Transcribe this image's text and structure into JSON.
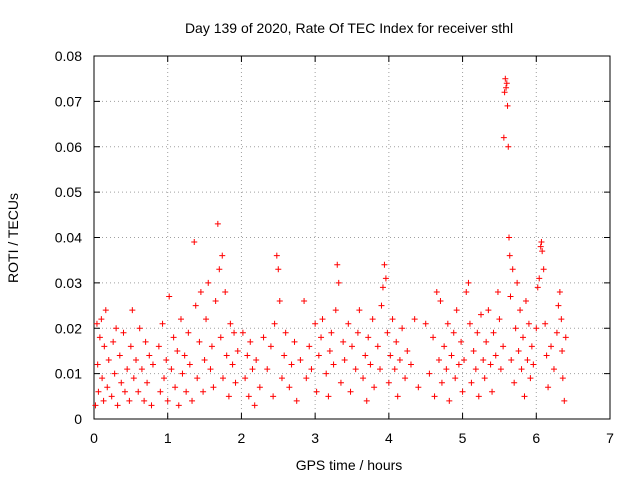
{
  "chart_data": {
    "type": "scatter",
    "title": "Day 139 of 2020, Rate Of TEC Index for receiver sthl",
    "xlabel": "GPS time / hours",
    "ylabel": "ROTI / TECUs",
    "xlim": [
      0,
      7
    ],
    "ylim": [
      0,
      0.08
    ],
    "xticks": [
      0,
      1,
      2,
      3,
      4,
      5,
      6,
      7
    ],
    "xtick_labels": [
      "0",
      "1",
      "2",
      "3",
      "4",
      "5",
      "6",
      "7"
    ],
    "yticks": [
      0,
      0.01,
      0.02,
      0.03,
      0.04,
      0.05,
      0.06,
      0.07,
      0.08
    ],
    "ytick_labels": [
      "0",
      "0.01",
      "0.02",
      "0.03",
      "0.04",
      "0.05",
      "0.06",
      "0.07",
      "0.08"
    ],
    "grid": true,
    "marker": "+",
    "color": "#ff0000",
    "series": [
      {
        "name": "ROTI",
        "points": [
          [
            0.02,
            0.003
          ],
          [
            0.04,
            0.021
          ],
          [
            0.05,
            0.012
          ],
          [
            0.06,
            0.006
          ],
          [
            0.08,
            0.018
          ],
          [
            0.1,
            0.022
          ],
          [
            0.11,
            0.009
          ],
          [
            0.13,
            0.004
          ],
          [
            0.14,
            0.016
          ],
          [
            0.16,
            0.024
          ],
          [
            0.18,
            0.007
          ],
          [
            0.2,
            0.013
          ],
          [
            0.24,
            0.005
          ],
          [
            0.26,
            0.017
          ],
          [
            0.28,
            0.01
          ],
          [
            0.3,
            0.02
          ],
          [
            0.32,
            0.003
          ],
          [
            0.35,
            0.014
          ],
          [
            0.37,
            0.008
          ],
          [
            0.4,
            0.019
          ],
          [
            0.42,
            0.006
          ],
          [
            0.45,
            0.011
          ],
          [
            0.48,
            0.004
          ],
          [
            0.5,
            0.016
          ],
          [
            0.52,
            0.024
          ],
          [
            0.54,
            0.009
          ],
          [
            0.57,
            0.013
          ],
          [
            0.6,
            0.006
          ],
          [
            0.62,
            0.02
          ],
          [
            0.65,
            0.011
          ],
          [
            0.68,
            0.004
          ],
          [
            0.7,
            0.017
          ],
          [
            0.72,
            0.008
          ],
          [
            0.75,
            0.014
          ],
          [
            0.78,
            0.003
          ],
          [
            0.8,
            0.012
          ],
          [
            0.88,
            0.016
          ],
          [
            0.9,
            0.006
          ],
          [
            0.93,
            0.021
          ],
          [
            0.95,
            0.009
          ],
          [
            0.98,
            0.013
          ],
          [
            1.0,
            0.004
          ],
          [
            1.02,
            0.027
          ],
          [
            1.05,
            0.011
          ],
          [
            1.08,
            0.018
          ],
          [
            1.1,
            0.007
          ],
          [
            1.13,
            0.015
          ],
          [
            1.15,
            0.003
          ],
          [
            1.18,
            0.022
          ],
          [
            1.2,
            0.01
          ],
          [
            1.23,
            0.014
          ],
          [
            1.25,
            0.006
          ],
          [
            1.28,
            0.019
          ],
          [
            1.3,
            0.012
          ],
          [
            1.33,
            0.004
          ],
          [
            1.36,
            0.039
          ],
          [
            1.38,
            0.025
          ],
          [
            1.4,
            0.009
          ],
          [
            1.43,
            0.017
          ],
          [
            1.45,
            0.028
          ],
          [
            1.48,
            0.006
          ],
          [
            1.5,
            0.013
          ],
          [
            1.52,
            0.022
          ],
          [
            1.55,
            0.03
          ],
          [
            1.58,
            0.011
          ],
          [
            1.6,
            0.016
          ],
          [
            1.62,
            0.007
          ],
          [
            1.65,
            0.026
          ],
          [
            1.68,
            0.043
          ],
          [
            1.7,
            0.033
          ],
          [
            1.72,
            0.018
          ],
          [
            1.74,
            0.036
          ],
          [
            1.75,
            0.009
          ],
          [
            1.78,
            0.028
          ],
          [
            1.8,
            0.014
          ],
          [
            1.83,
            0.005
          ],
          [
            1.85,
            0.021
          ],
          [
            1.88,
            0.012
          ],
          [
            1.9,
            0.019
          ],
          [
            1.92,
            0.008
          ],
          [
            1.95,
            0.015
          ],
          [
            2.02,
            0.019
          ],
          [
            2.05,
            0.009
          ],
          [
            2.08,
            0.014
          ],
          [
            2.1,
            0.005
          ],
          [
            2.12,
            0.017
          ],
          [
            2.15,
            0.011
          ],
          [
            2.18,
            0.003
          ],
          [
            2.2,
            0.013
          ],
          [
            2.25,
            0.007
          ],
          [
            2.3,
            0.018
          ],
          [
            2.35,
            0.011
          ],
          [
            2.4,
            0.016
          ],
          [
            2.43,
            0.005
          ],
          [
            2.45,
            0.021
          ],
          [
            2.48,
            0.036
          ],
          [
            2.5,
            0.033
          ],
          [
            2.52,
            0.026
          ],
          [
            2.55,
            0.009
          ],
          [
            2.58,
            0.014
          ],
          [
            2.6,
            0.019
          ],
          [
            2.65,
            0.007
          ],
          [
            2.68,
            0.012
          ],
          [
            2.72,
            0.017
          ],
          [
            2.75,
            0.004
          ],
          [
            2.8,
            0.013
          ],
          [
            2.85,
            0.026
          ],
          [
            2.88,
            0.009
          ],
          [
            2.92,
            0.016
          ],
          [
            2.95,
            0.011
          ],
          [
            3.0,
            0.021
          ],
          [
            3.02,
            0.006
          ],
          [
            3.05,
            0.014
          ],
          [
            3.08,
            0.018
          ],
          [
            3.1,
            0.022
          ],
          [
            3.15,
            0.01
          ],
          [
            3.18,
            0.005
          ],
          [
            3.2,
            0.015
          ],
          [
            3.22,
            0.019
          ],
          [
            3.25,
            0.012
          ],
          [
            3.28,
            0.024
          ],
          [
            3.3,
            0.034
          ],
          [
            3.32,
            0.03
          ],
          [
            3.35,
            0.008
          ],
          [
            3.38,
            0.017
          ],
          [
            3.4,
            0.013
          ],
          [
            3.45,
            0.021
          ],
          [
            3.48,
            0.006
          ],
          [
            3.5,
            0.016
          ],
          [
            3.55,
            0.011
          ],
          [
            3.58,
            0.019
          ],
          [
            3.6,
            0.024
          ],
          [
            3.65,
            0.009
          ],
          [
            3.68,
            0.014
          ],
          [
            3.7,
            0.004
          ],
          [
            3.72,
            0.018
          ],
          [
            3.75,
            0.012
          ],
          [
            3.78,
            0.022
          ],
          [
            3.8,
            0.007
          ],
          [
            3.85,
            0.016
          ],
          [
            3.88,
            0.011
          ],
          [
            3.9,
            0.025
          ],
          [
            3.92,
            0.029
          ],
          [
            3.94,
            0.034
          ],
          [
            3.96,
            0.031
          ],
          [
            3.98,
            0.019
          ],
          [
            4.0,
            0.008
          ],
          [
            4.02,
            0.014
          ],
          [
            4.05,
            0.022
          ],
          [
            4.08,
            0.011
          ],
          [
            4.1,
            0.017
          ],
          [
            4.12,
            0.005
          ],
          [
            4.15,
            0.013
          ],
          [
            4.18,
            0.02
          ],
          [
            4.22,
            0.009
          ],
          [
            4.25,
            0.015
          ],
          [
            4.3,
            0.012
          ],
          [
            4.35,
            0.022
          ],
          [
            4.4,
            0.007
          ],
          [
            4.5,
            0.021
          ],
          [
            4.55,
            0.01
          ],
          [
            4.6,
            0.018
          ],
          [
            4.62,
            0.005
          ],
          [
            4.65,
            0.028
          ],
          [
            4.68,
            0.013
          ],
          [
            4.7,
            0.026
          ],
          [
            4.72,
            0.008
          ],
          [
            4.75,
            0.016
          ],
          [
            4.78,
            0.011
          ],
          [
            4.8,
            0.021
          ],
          [
            4.82,
            0.004
          ],
          [
            4.85,
            0.014
          ],
          [
            4.88,
            0.019
          ],
          [
            4.9,
            0.009
          ],
          [
            4.92,
            0.024
          ],
          [
            4.95,
            0.012
          ],
          [
            4.98,
            0.017
          ],
          [
            5.0,
            0.006
          ],
          [
            5.02,
            0.013
          ],
          [
            5.05,
            0.028
          ],
          [
            5.08,
            0.03
          ],
          [
            5.1,
            0.021
          ],
          [
            5.12,
            0.008
          ],
          [
            5.15,
            0.015
          ],
          [
            5.18,
            0.011
          ],
          [
            5.2,
            0.019
          ],
          [
            5.22,
            0.005
          ],
          [
            5.25,
            0.023
          ],
          [
            5.28,
            0.013
          ],
          [
            5.3,
            0.009
          ],
          [
            5.32,
            0.017
          ],
          [
            5.35,
            0.024
          ],
          [
            5.38,
            0.012
          ],
          [
            5.4,
            0.006
          ],
          [
            5.42,
            0.019
          ],
          [
            5.45,
            0.014
          ],
          [
            5.48,
            0.028
          ],
          [
            5.5,
            0.022
          ],
          [
            5.52,
            0.011
          ],
          [
            5.55,
            0.016
          ],
          [
            5.56,
            0.062
          ],
          [
            5.57,
            0.072
          ],
          [
            5.58,
            0.075
          ],
          [
            5.59,
            0.073
          ],
          [
            5.6,
            0.074
          ],
          [
            5.61,
            0.069
          ],
          [
            5.62,
            0.06
          ],
          [
            5.63,
            0.04
          ],
          [
            5.64,
            0.036
          ],
          [
            5.65,
            0.027
          ],
          [
            5.66,
            0.013
          ],
          [
            5.68,
            0.033
          ],
          [
            5.7,
            0.008
          ],
          [
            5.72,
            0.02
          ],
          [
            5.74,
            0.03
          ],
          [
            5.76,
            0.015
          ],
          [
            5.78,
            0.024
          ],
          [
            5.8,
            0.011
          ],
          [
            5.82,
            0.018
          ],
          [
            5.84,
            0.005
          ],
          [
            5.86,
            0.026
          ],
          [
            5.88,
            0.013
          ],
          [
            5.9,
            0.021
          ],
          [
            5.92,
            0.009
          ],
          [
            5.94,
            0.016
          ],
          [
            5.96,
            0.012
          ],
          [
            6.0,
            0.02
          ],
          [
            6.02,
            0.029
          ],
          [
            6.04,
            0.031
          ],
          [
            6.06,
            0.038
          ],
          [
            6.07,
            0.039
          ],
          [
            6.08,
            0.037
          ],
          [
            6.1,
            0.033
          ],
          [
            6.12,
            0.021
          ],
          [
            6.14,
            0.014
          ],
          [
            6.16,
            0.007
          ],
          [
            6.2,
            0.016
          ],
          [
            6.24,
            0.011
          ],
          [
            6.28,
            0.019
          ],
          [
            6.3,
            0.025
          ],
          [
            6.32,
            0.028
          ],
          [
            6.34,
            0.022
          ],
          [
            6.35,
            0.015
          ],
          [
            6.36,
            0.009
          ],
          [
            6.38,
            0.004
          ],
          [
            6.4,
            0.018
          ]
        ]
      }
    ]
  }
}
